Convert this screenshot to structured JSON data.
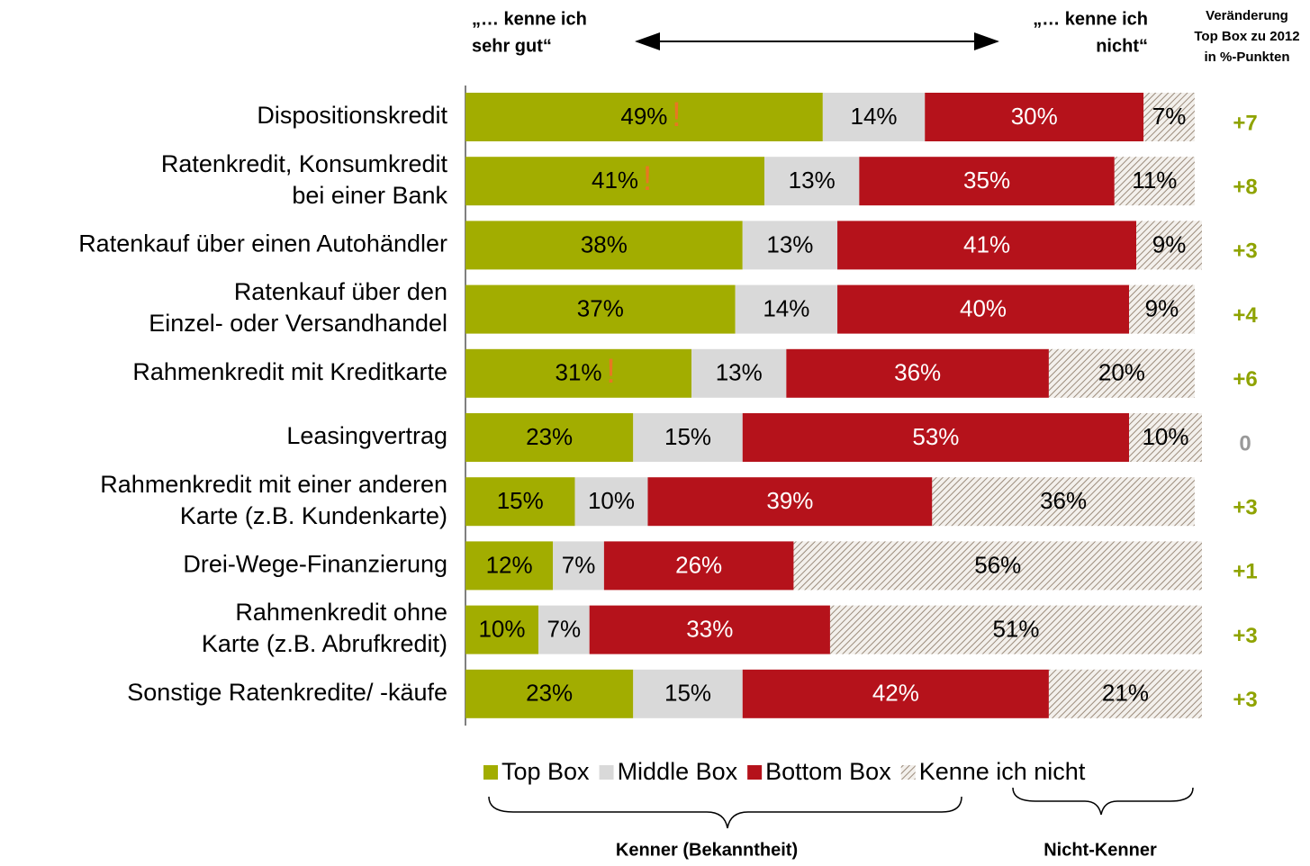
{
  "chart_data": {
    "type": "stacked_bar_horizontal",
    "left_annotation": [
      "„… kenne ich",
      "sehr gut“"
    ],
    "right_annotation": [
      "„… kenne ich",
      "nicht“"
    ],
    "change_header": [
      "Veränderung",
      "Top Box zu 2012",
      "in %-Punkten"
    ],
    "categories": [
      [
        "Dispositionskredit"
      ],
      [
        "Ratenkredit, Konsumkredit",
        "bei einer Bank"
      ],
      [
        "Ratenkauf über einen Autohändler"
      ],
      [
        "Ratenkauf über den",
        "Einzel- oder Versandhandel"
      ],
      [
        "Rahmenkredit mit Kreditkarte"
      ],
      [
        "Leasingvertrag"
      ],
      [
        "Rahmenkredit mit einer anderen",
        "Karte (z.B. Kundenkarte)"
      ],
      [
        "Drei-Wege-Finanzierung"
      ],
      [
        "Rahmenkredit ohne",
        "Karte (z.B. Abrufkredit)"
      ],
      [
        "Sonstige Ratenkredite/ -käufe"
      ]
    ],
    "series": [
      {
        "name": "Top Box",
        "color": "#a2ad00",
        "values": [
          49,
          41,
          38,
          37,
          31,
          23,
          15,
          12,
          10,
          23
        ],
        "value_labels": [
          "49%",
          "41%",
          "38%",
          "37%",
          "31%",
          "23%",
          "15%",
          "12%",
          "10%",
          "23%"
        ]
      },
      {
        "name": "Middle Box",
        "color": "#d9d9d9",
        "values": [
          14,
          13,
          13,
          14,
          13,
          15,
          10,
          7,
          7,
          15
        ],
        "value_labels": [
          "14%",
          "13%",
          "13%",
          "14%",
          "13%",
          "15%",
          "10%",
          "7%",
          "7%",
          "15%"
        ]
      },
      {
        "name": "Bottom Box",
        "color": "#b5121b",
        "values": [
          30,
          35,
          41,
          40,
          36,
          53,
          39,
          26,
          33,
          42
        ],
        "value_labels": [
          "30%",
          "35%",
          "41%",
          "40%",
          "36%",
          "53%",
          "39%",
          "26%",
          "33%",
          "42%"
        ]
      },
      {
        "name": "Kenne ich nicht",
        "color": "#9c8c7c",
        "pattern": "hatch",
        "values": [
          7,
          11,
          9,
          9,
          20,
          10,
          36,
          56,
          51,
          21
        ],
        "value_labels": [
          "7%",
          "11%",
          "9%",
          "9%",
          "20%",
          "10%",
          "36%",
          "56%",
          "51%",
          "21%"
        ]
      }
    ],
    "flag_label": "!",
    "flags": [
      true,
      true,
      false,
      false,
      true,
      false,
      false,
      false,
      false,
      false
    ],
    "changes": [
      7,
      8,
      3,
      4,
      6,
      0,
      3,
      1,
      3,
      3
    ],
    "change_labels": [
      "+7",
      "+8",
      "+3",
      "+4",
      "+6",
      "0",
      "+3",
      "+1",
      "+3",
      "+3"
    ],
    "xlim": [
      0,
      101
    ],
    "brace_labels": [
      "Kenner (Bekanntheit)",
      "Nicht-Kenner"
    ]
  }
}
